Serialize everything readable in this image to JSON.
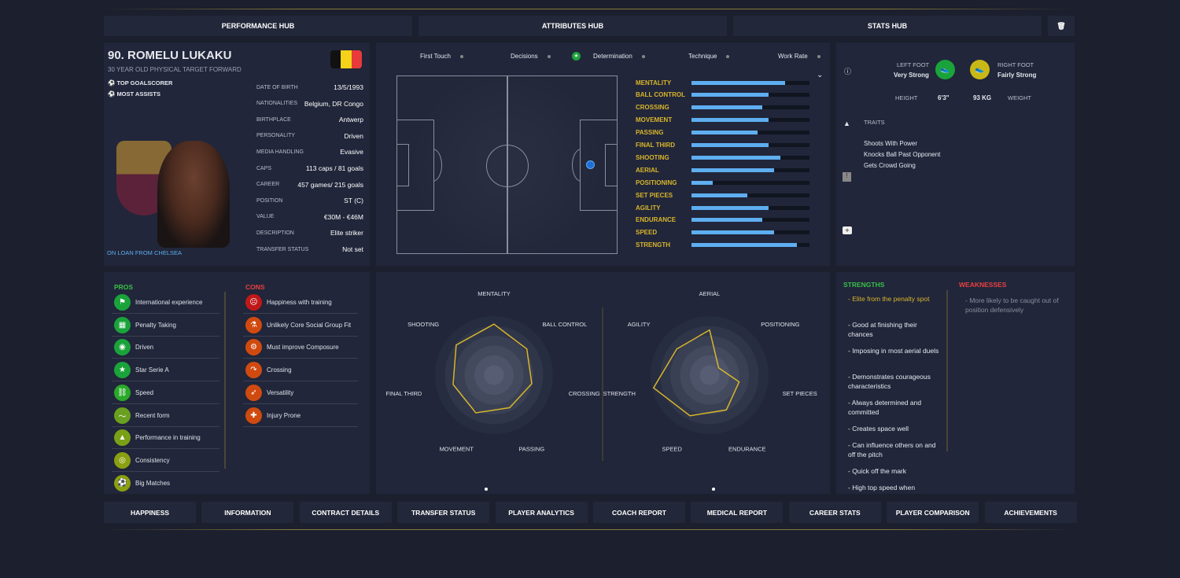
{
  "top_tabs": [
    "PERFORMANCE HUB",
    "ATTRIBUTES HUB",
    "STATS HUB"
  ],
  "player": {
    "name": "90. ROMELU LUKAKU",
    "subtitle": "30 YEAR OLD PHYSICAL TARGET FORWARD",
    "badges": [
      "TOP GOALSCORER",
      "MOST ASSISTS"
    ],
    "loan": "ON LOAN FROM CHELSEA",
    "info": [
      {
        "label": "DATE OF BIRTH",
        "value": "13/5/1993"
      },
      {
        "label": "NATIONALITIES",
        "value": "Belgium, DR Congo"
      },
      {
        "label": "BIRTHPLACE",
        "value": "Antwerp"
      },
      {
        "label": "PERSONALITY",
        "value": "Driven"
      },
      {
        "label": "MEDIA HANDLING",
        "value": "Evasive"
      },
      {
        "label": "CAPS",
        "value": "113 caps / 81 goals"
      },
      {
        "label": "CAREER",
        "value": "457  games/ 215 goals"
      },
      {
        "label": "POSITION",
        "value": "ST (C)"
      },
      {
        "label": "VALUE",
        "value": "€30M - €46M"
      },
      {
        "label": "DESCRIPTION",
        "value": "Elite striker"
      },
      {
        "label": "TRANSFER STATUS",
        "value": "Not set"
      }
    ]
  },
  "key_attrs": [
    "First Touch",
    "Decisions",
    "Determination",
    "Technique",
    "Work Rate"
  ],
  "attributes": [
    {
      "name": "MENTALITY",
      "value": 0.79
    },
    {
      "name": "BALL CONTROL",
      "value": 0.65
    },
    {
      "name": "CROSSING",
      "value": 0.6
    },
    {
      "name": "MOVEMENT",
      "value": 0.65
    },
    {
      "name": "PASSING",
      "value": 0.56
    },
    {
      "name": "FINAL THIRD",
      "value": 0.65
    },
    {
      "name": "SHOOTING",
      "value": 0.75
    },
    {
      "name": "AERIAL",
      "value": 0.7
    },
    {
      "name": "POSITIONING",
      "value": 0.18
    },
    {
      "name": "SET PIECES",
      "value": 0.47
    },
    {
      "name": "AGILITY",
      "value": 0.65
    },
    {
      "name": "ENDURANCE",
      "value": 0.6
    },
    {
      "name": "SPEED",
      "value": 0.7
    },
    {
      "name": "STRENGTH",
      "value": 0.89
    }
  ],
  "physical": {
    "left_foot_label": "LEFT FOOT",
    "left_foot": "Very Strong",
    "right_foot_label": "RIGHT FOOT",
    "right_foot": "Fairly Strong",
    "height_label": "HEIGHT",
    "height": "6'3\"",
    "weight": "93 KG",
    "weight_label": "WEIGHT",
    "left_foot_color": "#1aa33a",
    "right_foot_color": "#c8b816"
  },
  "traits": {
    "title": "TRAITS",
    "items": [
      "Shoots With Power",
      "Knocks Ball Past Opponent",
      "Gets Crowd Going"
    ]
  },
  "pros": {
    "title": "PROS",
    "items": [
      "International experience",
      "Penalty Taking",
      "Driven",
      "Star Serie A",
      "Speed",
      "Recent form",
      "Performance in training",
      "Consistency",
      "Big Matches"
    ]
  },
  "cons": {
    "title": "CONS",
    "items": [
      "Happiness with training",
      "Unlikely Core Social Group Fit",
      "Must improve Composure",
      "Crossing",
      "Versatility",
      "Injury Prone"
    ]
  },
  "radars": [
    {
      "axes": [
        "MENTALITY",
        "BALL CONTROL",
        "CROSSING",
        "PASSING",
        "MOVEMENT",
        "FINAL THIRD",
        "SHOOTING"
      ],
      "values": [
        0.79,
        0.65,
        0.6,
        0.56,
        0.65,
        0.65,
        0.75
      ]
    },
    {
      "axes": [
        "AERIAL",
        "POSITIONING",
        "SET PIECES",
        "ENDURANCE",
        "SPEED",
        "STRENGTH",
        "AGILITY"
      ],
      "values": [
        0.7,
        0.18,
        0.47,
        0.6,
        0.7,
        0.89,
        0.65
      ]
    }
  ],
  "strengths": {
    "title": "STRENGTHS",
    "items": [
      "- Elite from the penalty spot",
      "- Good at finishing their chances",
      "- Imposing in most aerial duels",
      "- Demonstrates courageous characteristics",
      "- Always determined and committed",
      "- Creates space well",
      "- Can influence others on and off the pitch",
      "- Quick off the mark",
      "- High top speed when"
    ]
  },
  "weaknesses": {
    "title": "WEAKNESSES",
    "items": [
      "- More likely to be caught out of position defensively"
    ]
  },
  "bottom_tabs": [
    "HAPPINESS",
    "INFORMATION",
    "CONTRACT DETAILS",
    "TRANSFER STATUS",
    "PLAYER ANALYTICS",
    "COACH REPORT",
    "MEDICAL REPORT",
    "CAREER STATS",
    "PLAYER COMPARISON",
    "ACHIEVEMENTS"
  ]
}
